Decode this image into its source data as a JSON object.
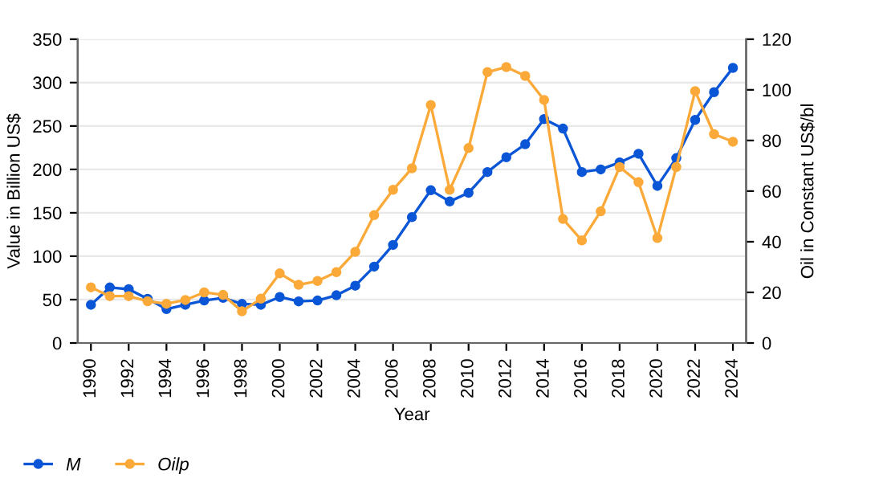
{
  "chart_data": {
    "type": "line",
    "xlabel": "Year",
    "ylabel": "Value in Billion US$",
    "y2label": "Oil in Constant US$/bl",
    "x": [
      1990,
      1991,
      1992,
      1993,
      1994,
      1995,
      1996,
      1997,
      1998,
      1999,
      2000,
      2001,
      2002,
      2003,
      2004,
      2005,
      2006,
      2007,
      2008,
      2009,
      2010,
      2011,
      2012,
      2013,
      2014,
      2015,
      2016,
      2017,
      2018,
      2019,
      2020,
      2021,
      2022,
      2023,
      2024
    ],
    "series": [
      {
        "name": "M",
        "color": "#0a56d6",
        "values": [
          44,
          64,
          62,
          51,
          39,
          44,
          49,
          52,
          45,
          44,
          53,
          48,
          49,
          55,
          66,
          88,
          113,
          145,
          176,
          163,
          173,
          197,
          214,
          229,
          258,
          247,
          197,
          200,
          208,
          218,
          181,
          213,
          257,
          289,
          317
        ]
      },
      {
        "name": "Oilp",
        "color": "#fbaa3a",
        "axis": "y2",
        "values": [
          22,
          18.5,
          18.5,
          16.5,
          15.5,
          17,
          20,
          19,
          12.5,
          17.5,
          27.5,
          23,
          24.5,
          28,
          36,
          50.5,
          60.5,
          69,
          94,
          60.5,
          77,
          107,
          109,
          105.5,
          96,
          49,
          40.5,
          52,
          69.5,
          63.5,
          41.5,
          69.5,
          99.5,
          82.5,
          79.5
        ]
      }
    ],
    "xlim": [
      1989.3,
      2024.7
    ],
    "xticks": [
      1990,
      1992,
      1994,
      1996,
      1998,
      2000,
      2002,
      2004,
      2006,
      2008,
      2010,
      2012,
      2014,
      2016,
      2018,
      2020,
      2022,
      2024
    ],
    "ylim": [
      0,
      350
    ],
    "yticks": [
      0,
      50,
      100,
      150,
      200,
      250,
      300,
      350
    ],
    "y2lim": [
      0,
      120
    ],
    "y2ticks": [
      0,
      20,
      40,
      60,
      80,
      100,
      120
    ],
    "grid": "y",
    "legend": "bottom left",
    "marker": "circle",
    "line_style": "solid"
  }
}
